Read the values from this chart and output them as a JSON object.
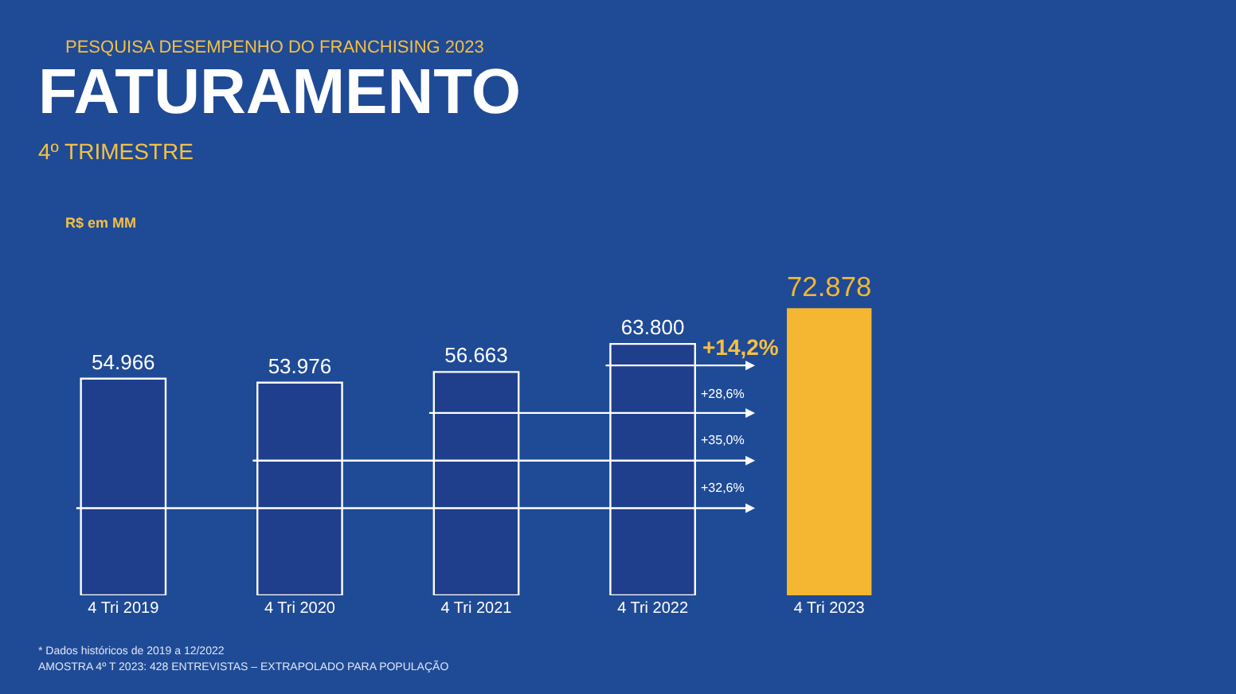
{
  "chart_data": {
    "type": "bar",
    "title": "FATURAMENTO",
    "subtitle": "4º TRIMESTRE",
    "categories": [
      "4 Tri 2019",
      "4 Tri 2020",
      "4 Tri 2021",
      "4 Tri 2022",
      "4 Tri 2023"
    ],
    "values": [
      54966,
      53976,
      56663,
      63800,
      72878
    ],
    "value_labels": [
      "54.966",
      "53.976",
      "56.663",
      "63.800",
      "72.878"
    ],
    "colors": [
      "#1f3f8c",
      "#1f3f8c",
      "#1f3f8c",
      "#1f3f8c",
      "#f5b731"
    ],
    "annotations": [
      "PESQUISA DESEMPENHO DO FRANCHISING 2023",
      "R$ em MM",
      "+14,2%",
      "+28,6%",
      "+35,0%",
      "+32,6%",
      "* Dados históricos de 2019 a 12/2022",
      "AMOSTRA 4º T 2023: 428 ENTREVISTAS – EXTRAPOLADO PARA POPULAÇÃO"
    ],
    "grid": false,
    "legend": false
  }
}
